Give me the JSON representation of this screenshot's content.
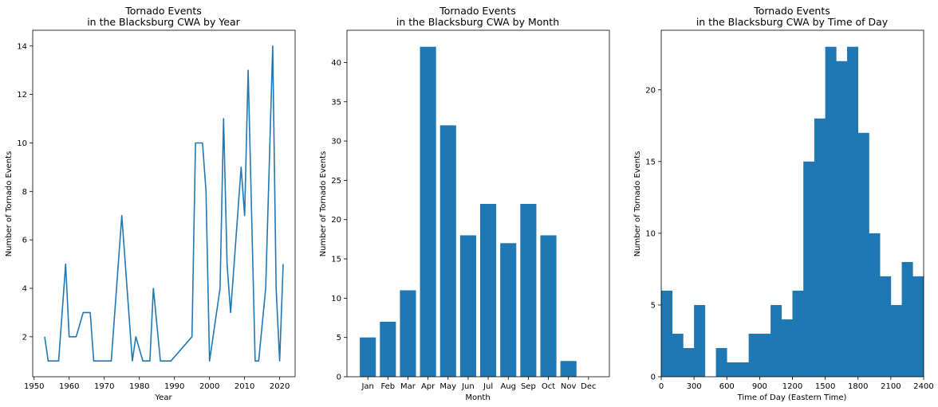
{
  "accent_color": "#1f77b4",
  "chart_data": [
    {
      "type": "line",
      "title": "Tornado Events\nin the Blacksburg CWA by Year",
      "xlabel": "Year",
      "ylabel": "Number of Tornado Events",
      "xlim": [
        1949.6,
        2024.4
      ],
      "ylim": [
        0.35,
        14.65
      ],
      "xticks": [
        1950,
        1960,
        1970,
        1980,
        1990,
        2000,
        2010,
        2020
      ],
      "yticks": [
        2,
        4,
        6,
        8,
        10,
        12,
        14
      ],
      "series": [
        {
          "x": [
            1953,
            1954,
            1957,
            1959,
            1960,
            1962,
            1964,
            1966,
            1967,
            1969,
            1970,
            1972,
            1975,
            1978,
            1979,
            1981,
            1983,
            1984,
            1986,
            1989,
            1995,
            1996,
            1998,
            1999,
            2000,
            2003,
            2004,
            2005,
            2006,
            2008,
            2009,
            2010,
            2011,
            2013,
            2014,
            2016,
            2018,
            2019,
            2020,
            2021
          ],
          "y": [
            2,
            1,
            1,
            5,
            2,
            2,
            3,
            3,
            1,
            1,
            1,
            1,
            7,
            1,
            2,
            1,
            1,
            4,
            1,
            1,
            2,
            10,
            10,
            8,
            1,
            4,
            11,
            5,
            3,
            7,
            9,
            7,
            13,
            1,
            1,
            4,
            14,
            4,
            1,
            5
          ]
        }
      ]
    },
    {
      "type": "bar",
      "title": "Tornado Events\nin the Blacksburg CWA by Month",
      "xlabel": "Month",
      "ylabel": "Number of Tornado Events",
      "categories": [
        "Jan",
        "Feb",
        "Mar",
        "Apr",
        "May",
        "Jun",
        "Jul",
        "Aug",
        "Sep",
        "Oct",
        "Nov",
        "Dec"
      ],
      "values": [
        5,
        7,
        11,
        42,
        32,
        18,
        22,
        17,
        22,
        18,
        2,
        0
      ],
      "ylim": [
        0,
        44.1
      ],
      "yticks": [
        0,
        5,
        10,
        15,
        20,
        25,
        30,
        35,
        40
      ]
    },
    {
      "type": "bar",
      "title": "Tornado Events\nin the Blacksburg CWA by Time of Day",
      "xlabel": "Time of Day (Eastern Time)",
      "ylabel": "Number of Tornado Events",
      "bin_edges": [
        0,
        100,
        200,
        300,
        400,
        500,
        600,
        700,
        800,
        900,
        1000,
        1100,
        1200,
        1300,
        1400,
        1500,
        1600,
        1700,
        1800,
        1900,
        2000,
        2100,
        2200,
        2300,
        2400
      ],
      "values": [
        6,
        3,
        2,
        5,
        0,
        2,
        1,
        1,
        3,
        3,
        5,
        4,
        6,
        15,
        18,
        23,
        22,
        23,
        17,
        10,
        7,
        5,
        8,
        7
      ],
      "xlim": [
        0,
        2400
      ],
      "ylim": [
        0,
        24.15
      ],
      "xticks": [
        0,
        300,
        600,
        900,
        1200,
        1500,
        1800,
        2100,
        2400
      ],
      "yticks": [
        0,
        5,
        10,
        15,
        20
      ]
    }
  ]
}
